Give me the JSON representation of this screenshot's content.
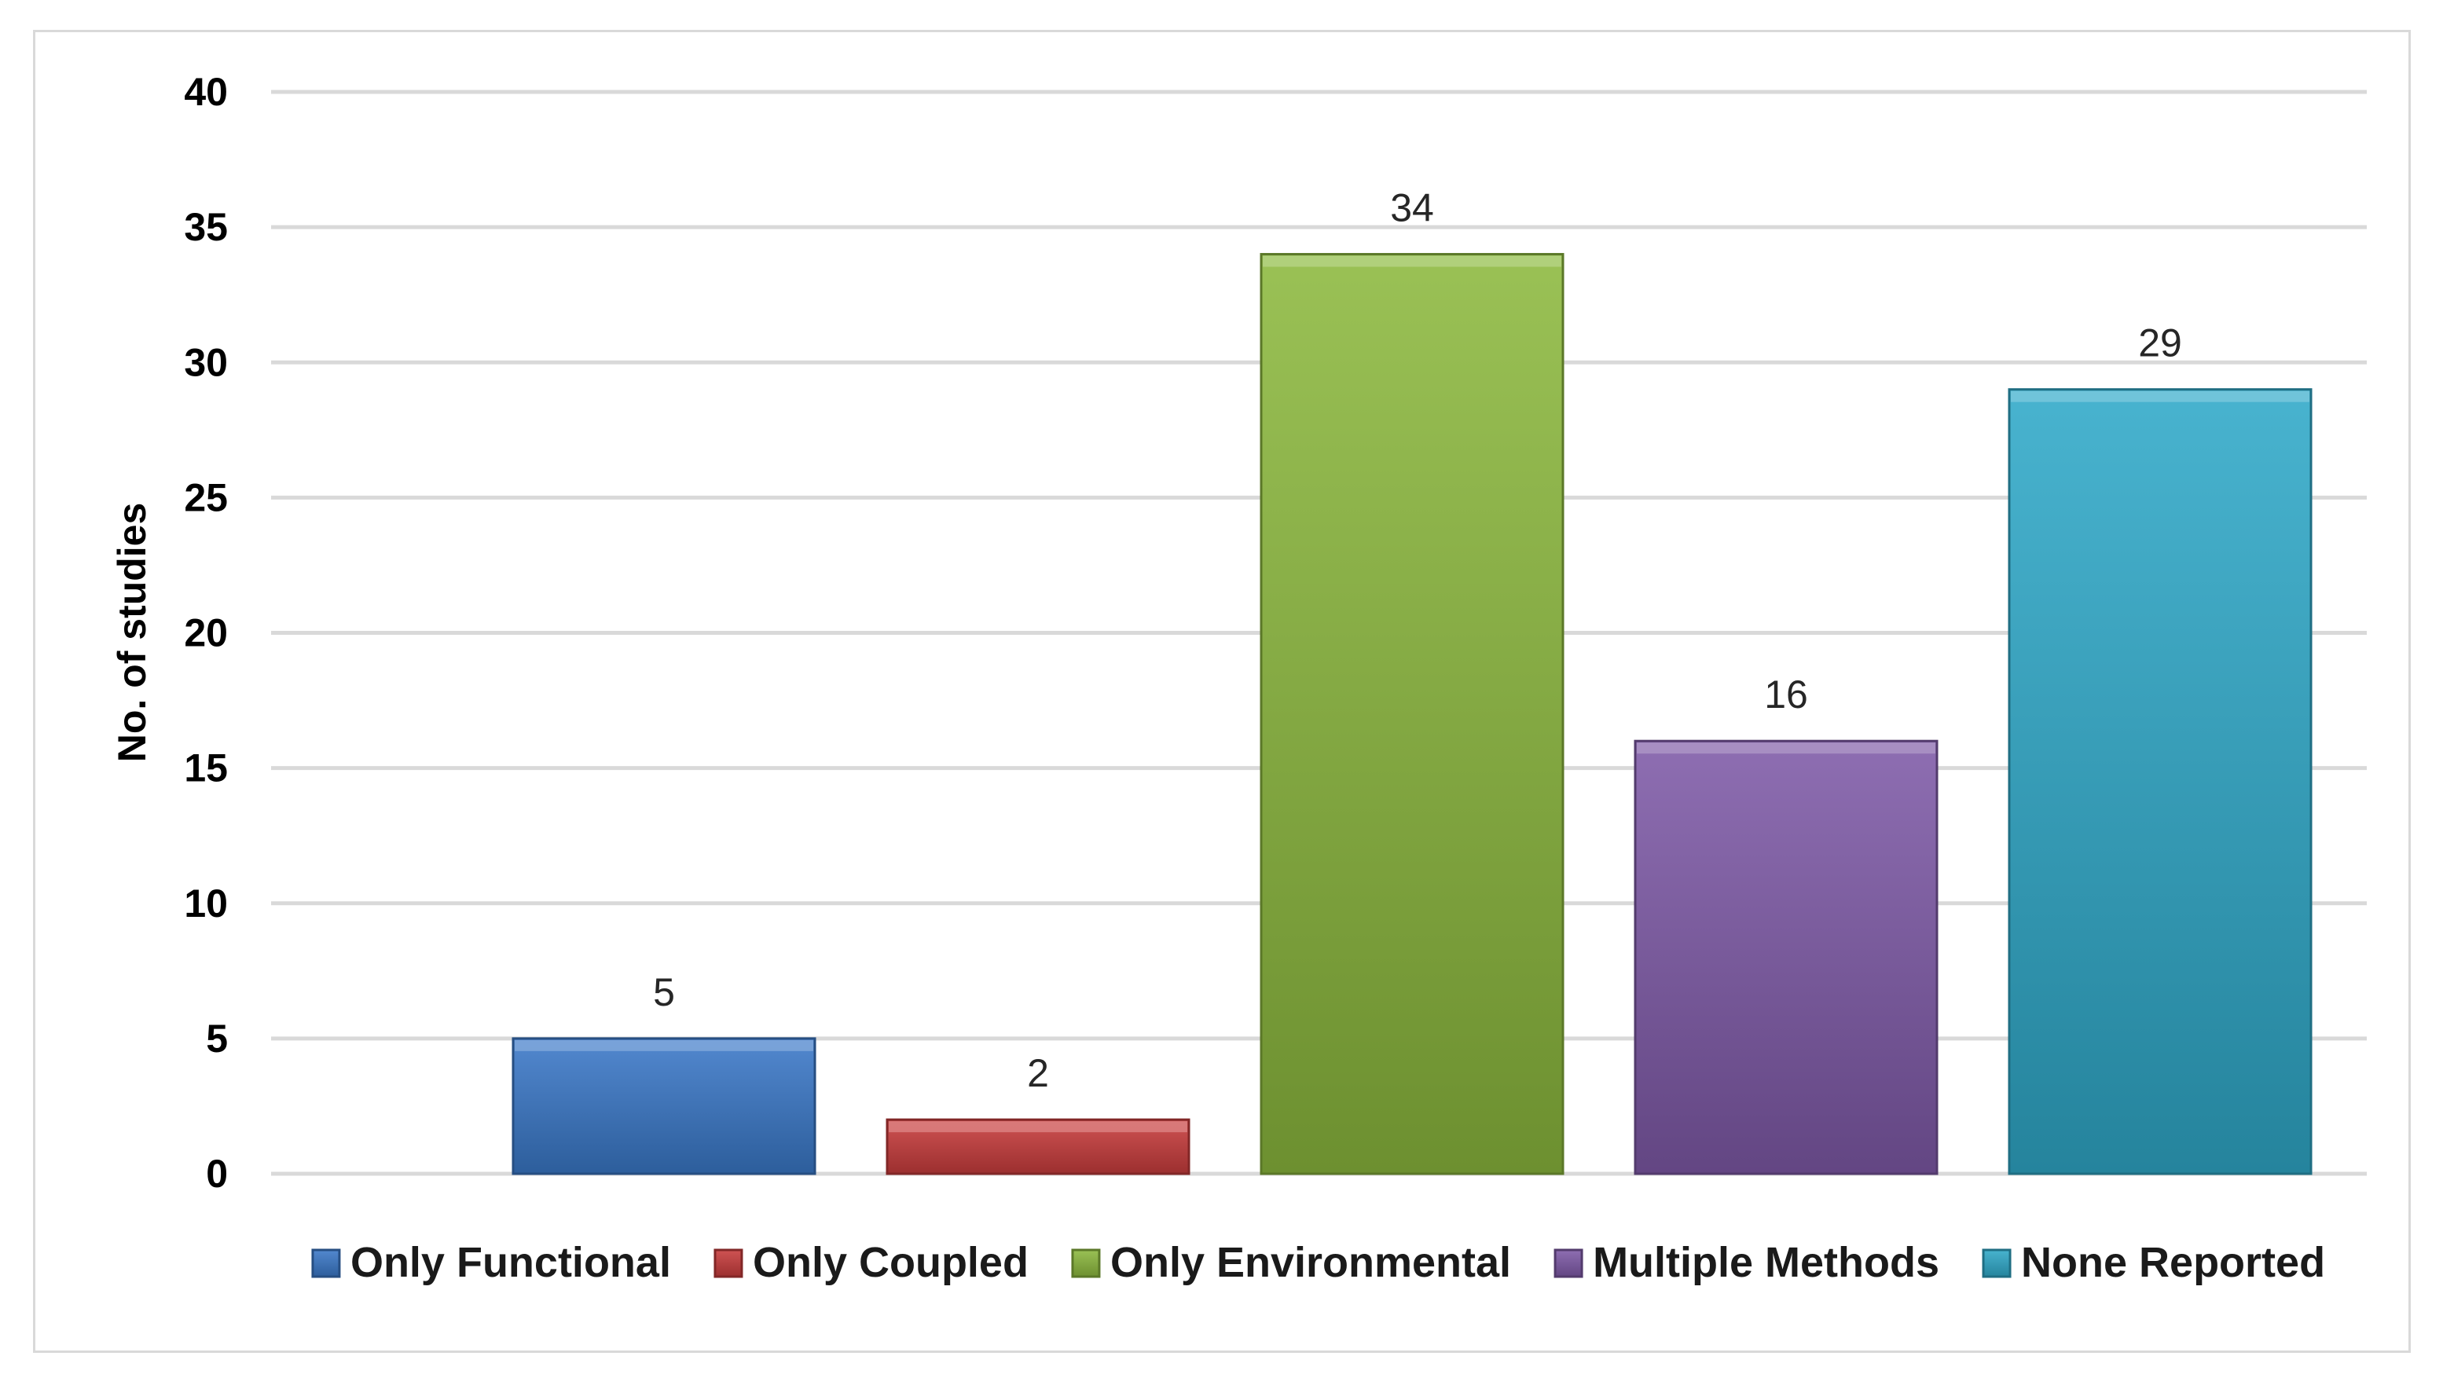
{
  "chart_data": {
    "type": "bar",
    "categories": [
      "Only Functional",
      "Only Coupled",
      "Only Environmental",
      "Multiple Methods",
      "None Reported"
    ],
    "values": [
      5,
      2,
      34,
      16,
      29
    ],
    "title": "",
    "xlabel": "",
    "ylabel": "No. of studies",
    "ylim": [
      0,
      40
    ],
    "yticks": [
      0,
      5,
      10,
      15,
      20,
      25,
      30,
      35,
      40
    ],
    "grid": true,
    "legend_position": "bottom",
    "colors": [
      "#3a78c8",
      "#c83c3c",
      "#8cb93e",
      "#7f5aa8",
      "#2fa9c9"
    ],
    "data_labels": [
      "5",
      "2",
      "34",
      "16",
      "29"
    ]
  }
}
